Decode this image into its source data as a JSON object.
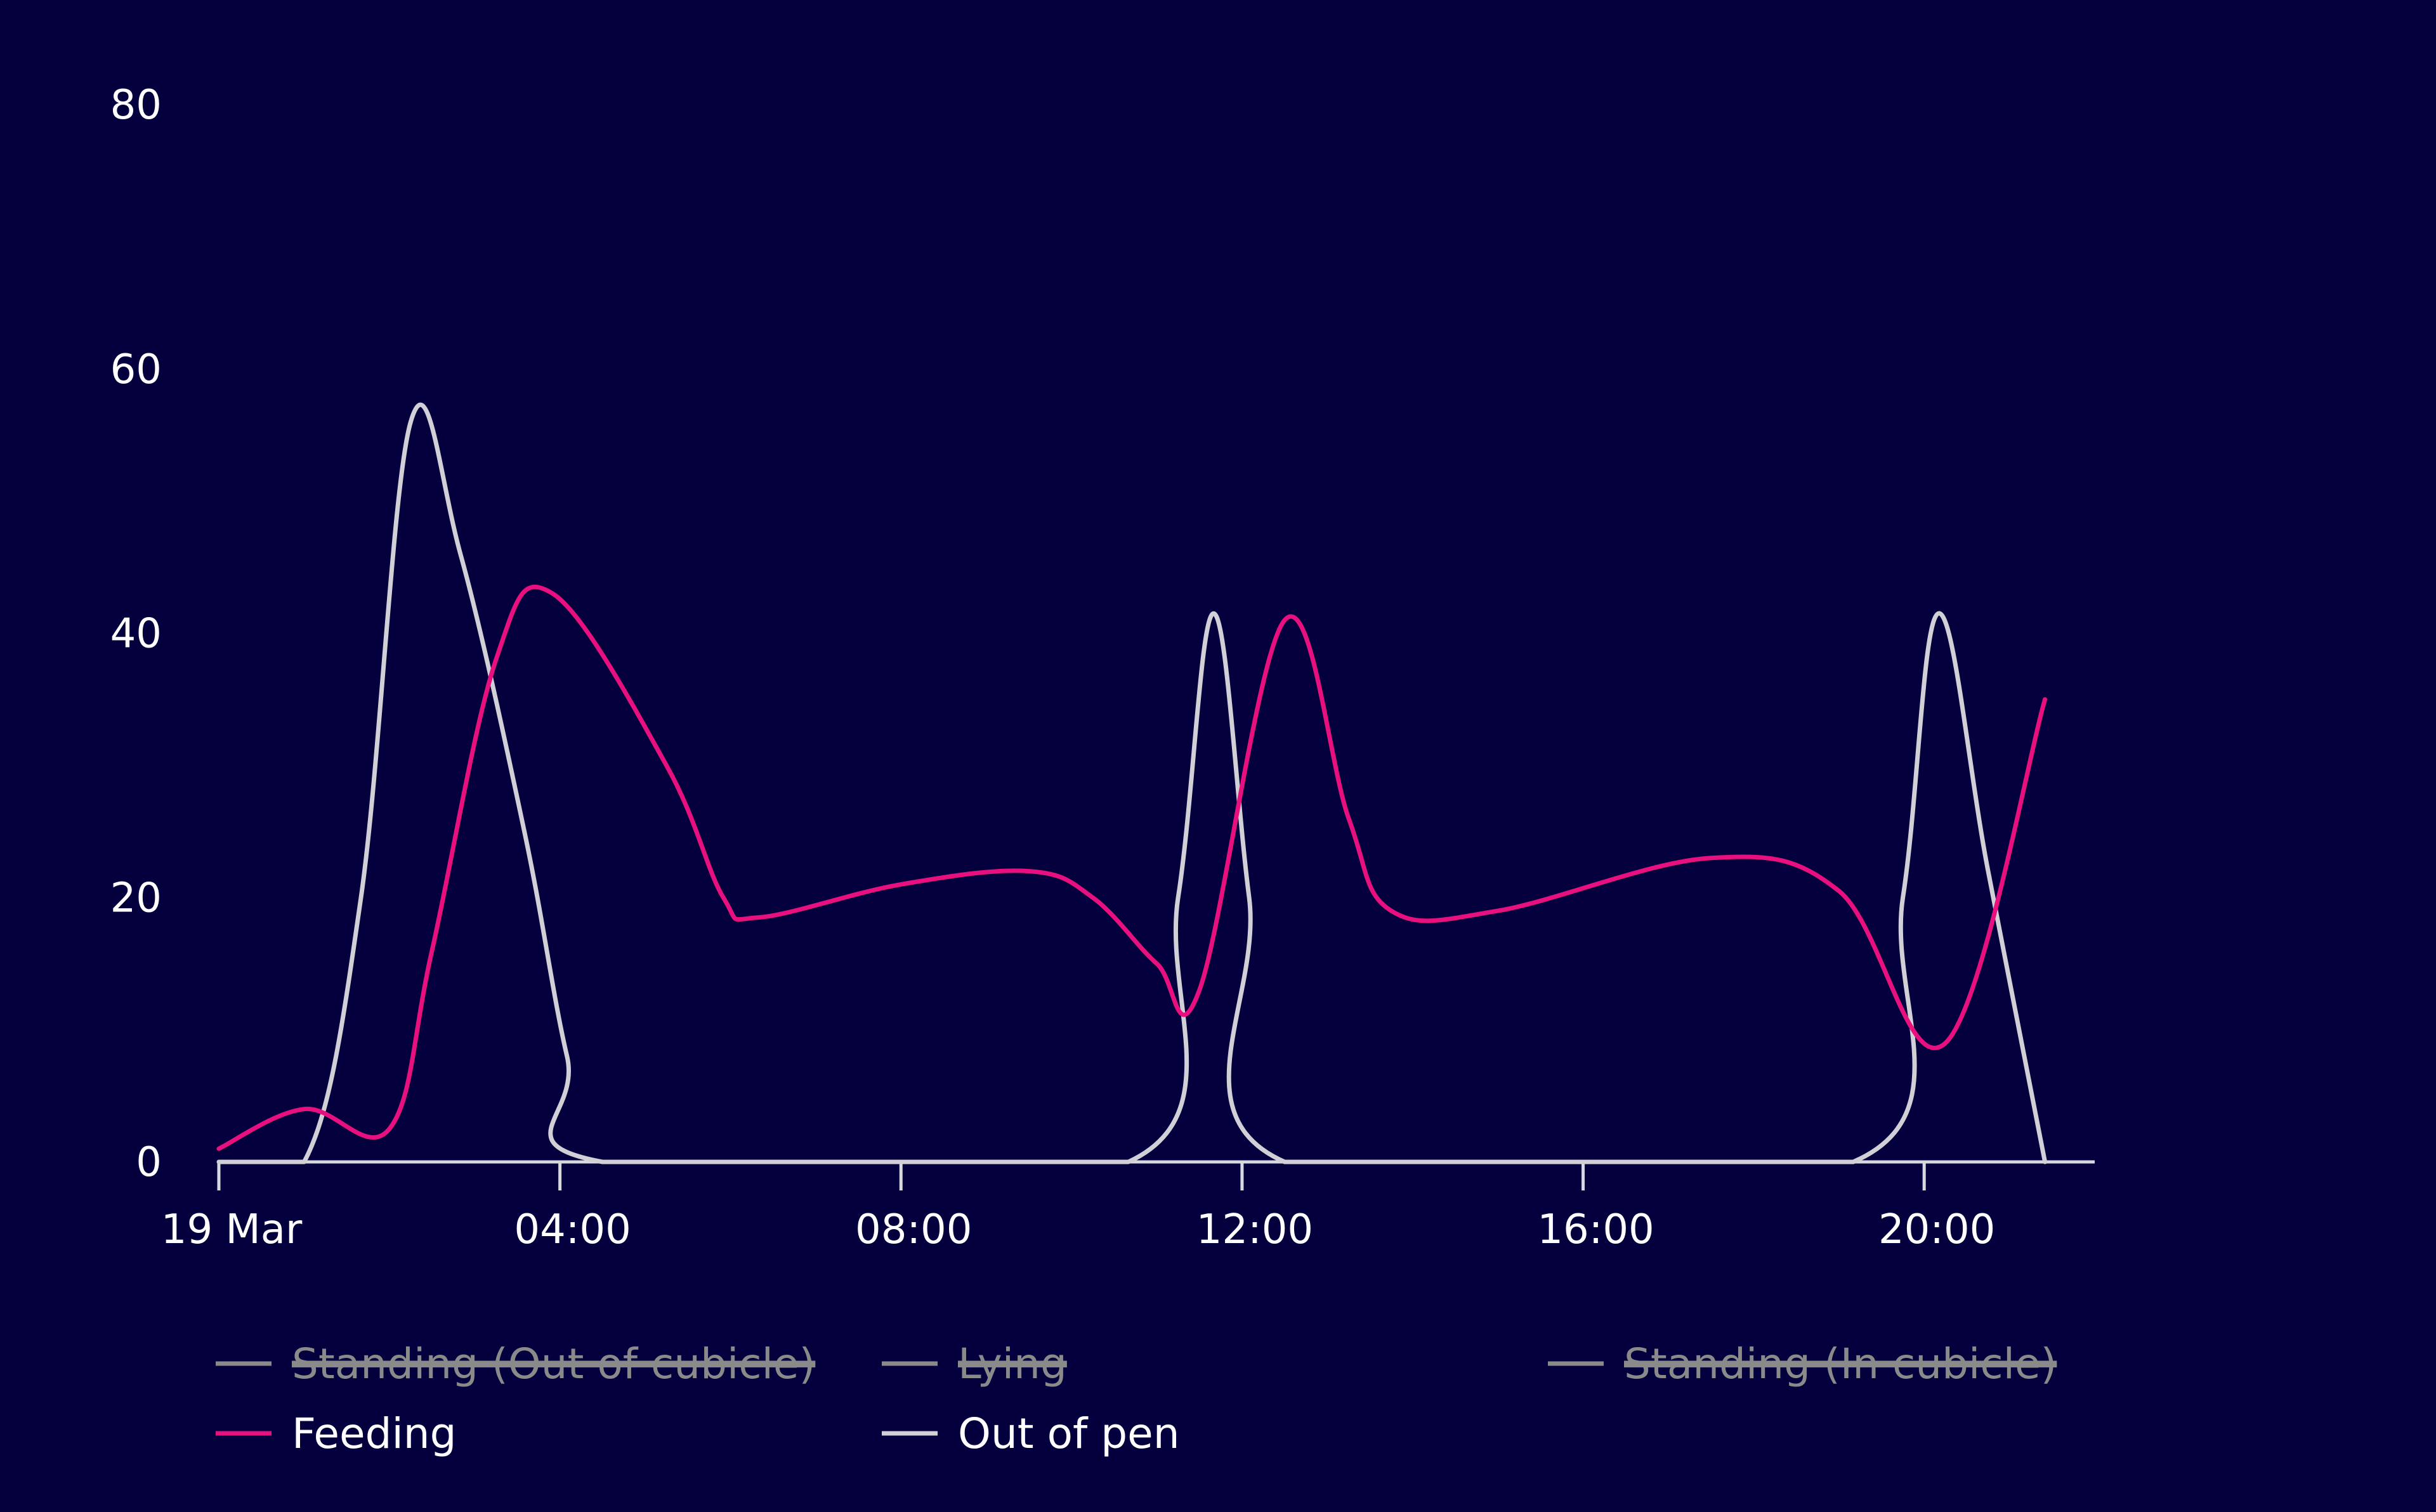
{
  "chart_data": {
    "type": "line",
    "title": "",
    "xlabel": "",
    "ylabel": "",
    "ylim": [
      0,
      80
    ],
    "yticks": [
      "0",
      "20",
      "40",
      "60",
      "80"
    ],
    "xlim": [
      "19 Mar 00:00",
      "19 Mar 22:00"
    ],
    "xticks": [
      {
        "label": "19 Mar",
        "time": "00:00"
      },
      {
        "label": "04:00",
        "time": "04:00"
      },
      {
        "label": "08:00",
        "time": "08:00"
      },
      {
        "label": "12:00",
        "time": "12:00"
      },
      {
        "label": "16:00",
        "time": "16:00"
      },
      {
        "label": "20:00",
        "time": "20:00"
      }
    ],
    "grid": false,
    "legend_position": "bottom",
    "colors": {
      "background": "#03003d",
      "axis": "#d8d8e0",
      "tick_text": "#ffffff",
      "hidden": "#8a8a8a",
      "feeding": "#e8107f",
      "out_of_pen": "#d0d0d6"
    },
    "series": [
      {
        "name": "Standing (Out of cubicle)",
        "visible": false,
        "color": "#8a8a8a",
        "points": []
      },
      {
        "name": "Lying",
        "visible": false,
        "color": "#8a8a8a",
        "points": []
      },
      {
        "name": "Standing (In cubicle)",
        "visible": false,
        "color": "#8a8a8a",
        "points": []
      },
      {
        "name": "Feeding",
        "visible": true,
        "color": "#e8107f",
        "points": [
          [
            "00:00",
            1
          ],
          [
            "01:00",
            4
          ],
          [
            "02:00",
            2.5
          ],
          [
            "02:30",
            16
          ],
          [
            "03:15",
            38
          ],
          [
            "03:55",
            43
          ],
          [
            "05:15",
            30
          ],
          [
            "05:55",
            20
          ],
          [
            "06:20",
            18.5
          ],
          [
            "08:00",
            21
          ],
          [
            "09:30",
            22
          ],
          [
            "10:15",
            20
          ],
          [
            "11:00",
            15
          ],
          [
            "11:30",
            13
          ],
          [
            "12:30",
            41
          ],
          [
            "13:15",
            26
          ],
          [
            "13:45",
            19
          ],
          [
            "15:00",
            19
          ],
          [
            "17:30",
            23
          ],
          [
            "19:00",
            20.5
          ],
          [
            "20:15",
            9
          ],
          [
            "21:25",
            35
          ]
        ]
      },
      {
        "name": "Out of pen",
        "visible": true,
        "color": "#d0d0d6",
        "points": [
          [
            "00:00",
            0
          ],
          [
            "01:00",
            0
          ],
          [
            "01:40",
            20
          ],
          [
            "02:15",
            56
          ],
          [
            "02:50",
            46
          ],
          [
            "03:35",
            25
          ],
          [
            "04:05",
            8
          ],
          [
            "04:30",
            0
          ],
          [
            "10:40",
            0
          ],
          [
            "11:15",
            20
          ],
          [
            "11:40",
            41.5
          ],
          [
            "12:05",
            20
          ],
          [
            "12:30",
            0
          ],
          [
            "19:10",
            0
          ],
          [
            "19:45",
            20
          ],
          [
            "20:10",
            41.5
          ],
          [
            "20:45",
            22
          ],
          [
            "21:25",
            0
          ]
        ]
      }
    ]
  }
}
